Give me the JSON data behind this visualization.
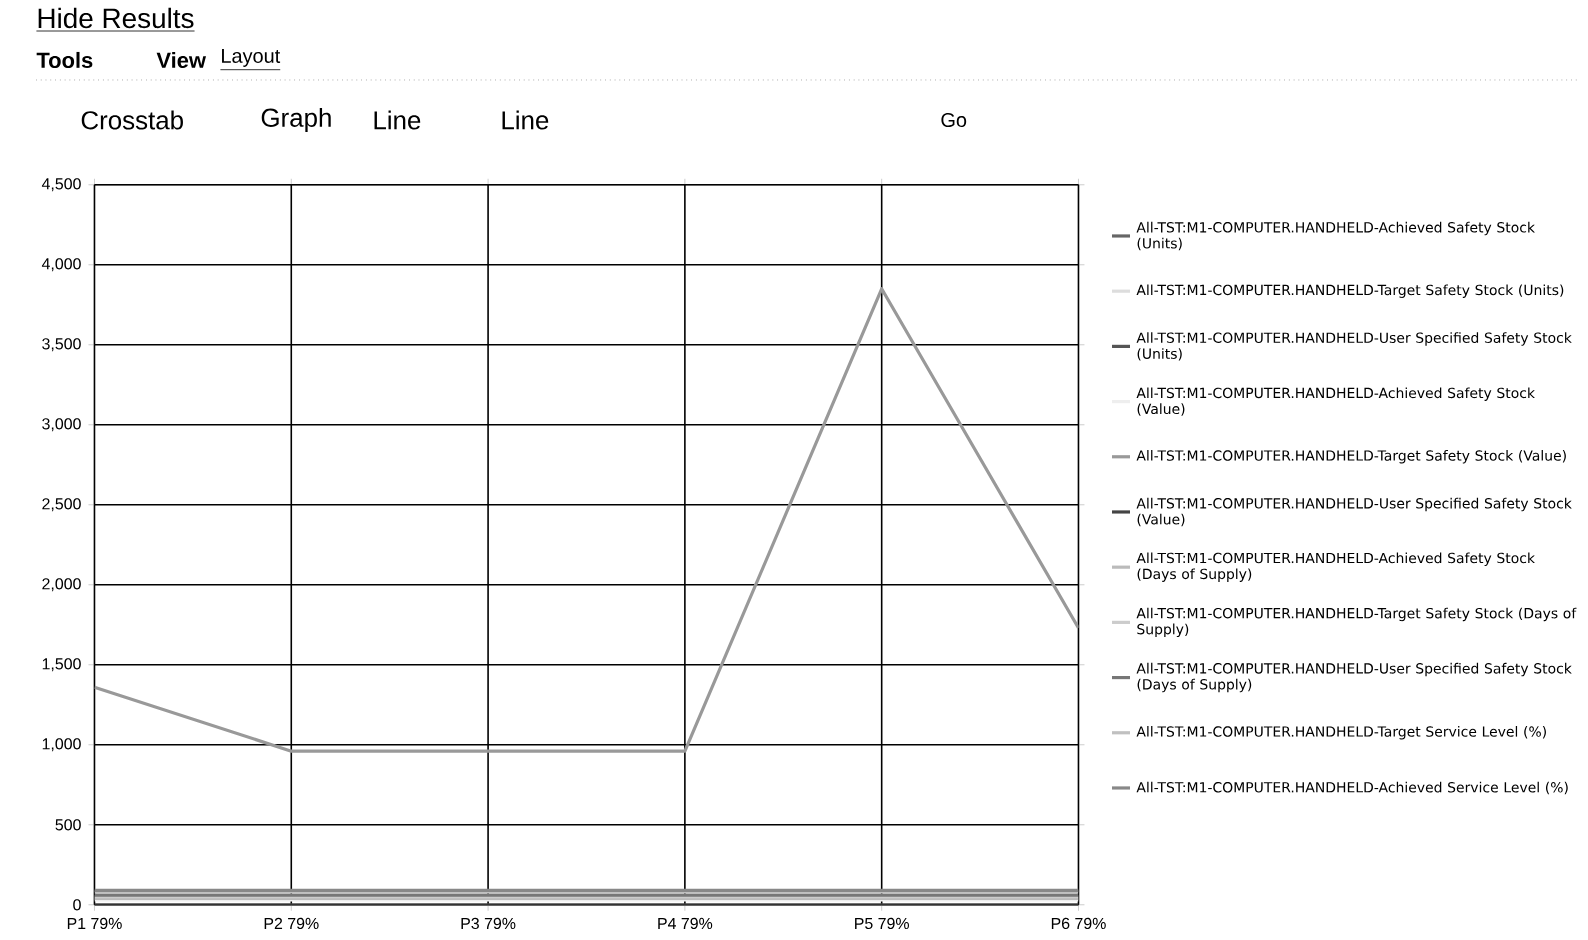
{
  "chart_data": {
    "type": "line",
    "categories": [
      "P1 79%",
      "P2 79%",
      "P3 79%",
      "P4 79%",
      "P5 79%",
      "P6 79%"
    ],
    "series": [
      {
        "name": "All-TST:M1-COMPUTER.HANDHELD-Achieved Safety Stock (Units)",
        "color": "#666666",
        "values": [
          null,
          null,
          null,
          null,
          null,
          null
        ]
      },
      {
        "name": "All-TST:M1-COMPUTER.HANDHELD-Target Safety Stock (Units)",
        "color": "#dddddd",
        "values": [
          null,
          null,
          null,
          null,
          null,
          null
        ]
      },
      {
        "name": "All-TST:M1-COMPUTER.HANDHELD-User Specified Safety Stock (Units)",
        "color": "#555555",
        "values": [
          null,
          null,
          null,
          null,
          null,
          null
        ]
      },
      {
        "name": "All-TST:M1-COMPUTER.HANDHELD-Achieved Safety Stock (Value)",
        "color": "#eeeeee",
        "values": [
          30,
          30,
          30,
          30,
          30,
          30
        ]
      },
      {
        "name": "All-TST:M1-COMPUTER.HANDHELD-Target Safety Stock (Value)",
        "color": "#999999",
        "values": [
          1360,
          960,
          960,
          960,
          3850,
          1730
        ]
      },
      {
        "name": "All-TST:M1-COMPUTER.HANDHELD-User Specified Safety Stock (Value)",
        "color": "#444444",
        "values": [
          0,
          0,
          0,
          0,
          0,
          0
        ]
      },
      {
        "name": "All-TST:M1-COMPUTER.HANDHELD-Achieved Safety Stock (Days of Supply)",
        "color": "#bbbbbb",
        "values": [
          40,
          40,
          40,
          40,
          40,
          40
        ]
      },
      {
        "name": "All-TST:M1-COMPUTER.HANDHELD-Target Safety Stock (Days of Supply)",
        "color": "#cccccc",
        "values": [
          50,
          50,
          50,
          50,
          50,
          50
        ]
      },
      {
        "name": "All-TST:M1-COMPUTER.HANDHELD-User Specified Safety Stock (Days of Supply)",
        "color": "#777777",
        "values": [
          60,
          60,
          60,
          60,
          60,
          60
        ]
      },
      {
        "name": "All-TST:M1-COMPUTER.HANDHELD-Target Service Level (%)",
        "color": "#c0c0c0",
        "values": [
          80,
          80,
          80,
          80,
          80,
          80
        ]
      },
      {
        "name": "All-TST:M1-COMPUTER.HANDHELD-Achieved Service Level (%)",
        "color": "#888888",
        "values": [
          90,
          90,
          90,
          90,
          90,
          90
        ]
      }
    ],
    "ylim": [
      0,
      4500
    ],
    "yticks": [
      0,
      500,
      {
        "value": 1000,
        "label": "1,000"
      },
      {
        "value": 1500,
        "label": "1,500"
      },
      {
        "value": 2000,
        "label": "2,000"
      },
      {
        "value": 2500,
        "label": "2,500"
      },
      {
        "value": 3000,
        "label": "3,000"
      },
      {
        "value": 3500,
        "label": "3,500"
      },
      {
        "value": 4000,
        "label": "4,000"
      },
      {
        "value": 4500,
        "label": "4,500"
      }
    ],
    "grid": true,
    "legend": "right",
    "annotations": [
      "Hide Results",
      "Tools",
      "View",
      "Layout",
      "Crosstab",
      "Graph",
      "Line",
      "Line",
      "Go"
    ]
  }
}
